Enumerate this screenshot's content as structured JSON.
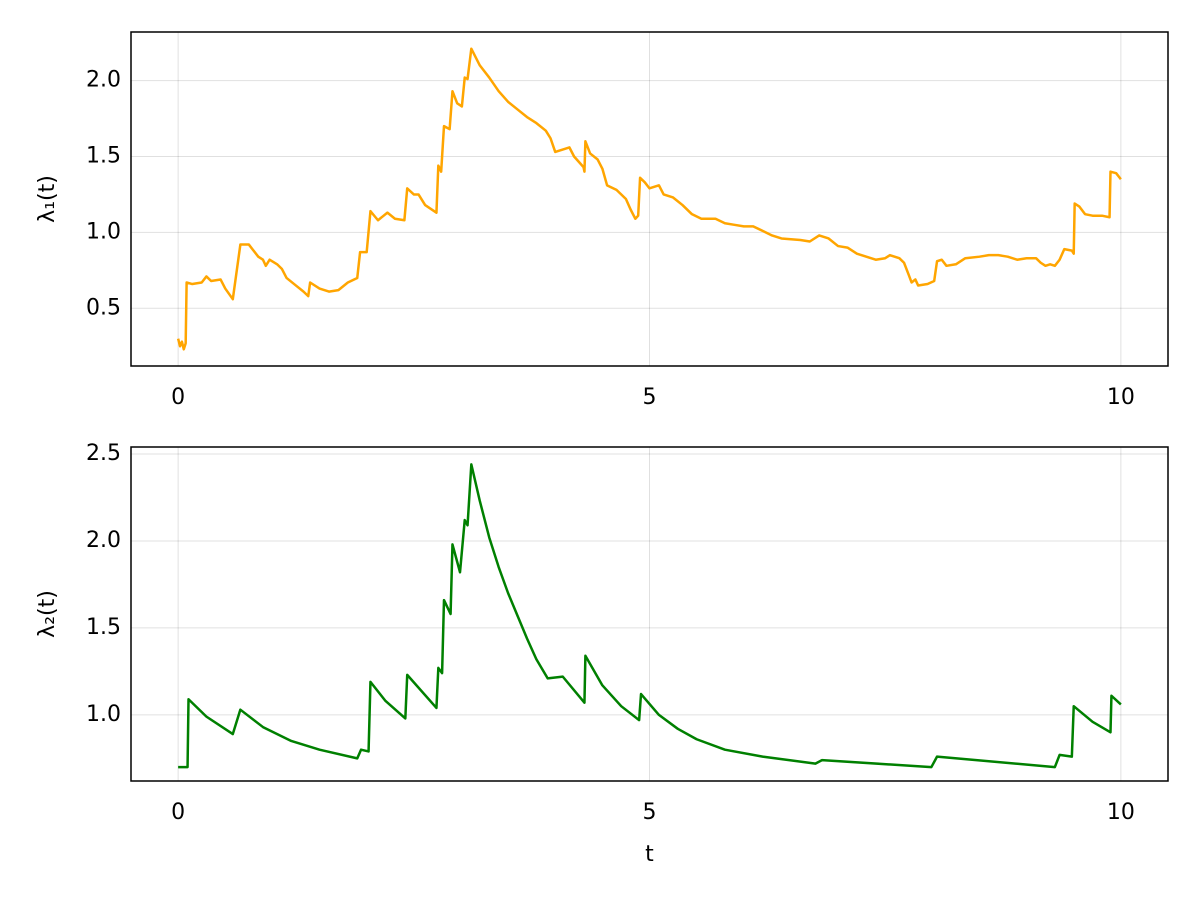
{
  "chart_data": [
    {
      "type": "line",
      "ylabel": "λ₁(t)",
      "xlim": [
        -0.5,
        10.5
      ],
      "xticks": [
        0,
        5,
        10
      ],
      "ylim": [
        0.12,
        2.32
      ],
      "yticks": [
        0.5,
        {
          "value": 1,
          "label": "1.0"
        },
        1.5,
        {
          "value": 2,
          "label": "2.0"
        }
      ],
      "grid": true,
      "x": [
        0,
        0.02,
        0.04,
        0.06,
        0.08,
        0.09,
        0.15,
        0.25,
        0.3,
        0.35,
        0.45,
        0.5,
        0.58,
        0.66,
        0.75,
        0.85,
        0.9,
        0.93,
        0.97,
        1.05,
        1.1,
        1.15,
        1.25,
        1.33,
        1.38,
        1.4,
        1.5,
        1.6,
        1.7,
        1.8,
        1.9,
        1.93,
        2.0,
        2.04,
        2.12,
        2.22,
        2.3,
        2.4,
        2.43,
        2.5,
        2.55,
        2.62,
        2.74,
        2.76,
        2.79,
        2.82,
        2.88,
        2.91,
        2.96,
        3.01,
        3.04,
        3.07,
        3.11,
        3.2,
        3.3,
        3.4,
        3.5,
        3.6,
        3.7,
        3.8,
        3.9,
        3.95,
        4.0,
        4.15,
        4.2,
        4.3,
        4.31,
        4.32,
        4.37,
        4.45,
        4.5,
        4.55,
        4.65,
        4.75,
        4.8,
        4.85,
        4.88,
        4.9,
        4.95,
        5.0,
        5.1,
        5.15,
        5.25,
        5.35,
        5.45,
        5.55,
        5.7,
        5.8,
        5.9,
        6.0,
        6.1,
        6.2,
        6.3,
        6.4,
        6.6,
        6.7,
        6.8,
        6.9,
        7.0,
        7.1,
        7.2,
        7.3,
        7.4,
        7.5,
        7.55,
        7.65,
        7.7,
        7.75,
        7.78,
        7.82,
        7.85,
        7.95,
        8.02,
        8.05,
        8.1,
        8.15,
        8.25,
        8.35,
        8.5,
        8.6,
        8.7,
        8.8,
        8.9,
        9.0,
        9.1,
        9.15,
        9.2,
        9.25,
        9.3,
        9.35,
        9.4,
        9.48,
        9.5,
        9.51,
        9.56,
        9.62,
        9.7,
        9.8,
        9.88,
        9.89,
        9.95,
        10.0
      ],
      "series": [
        {
          "color": "#ffa500",
          "values": [
            0.3,
            0.25,
            0.28,
            0.23,
            0.27,
            0.67,
            0.66,
            0.67,
            0.71,
            0.68,
            0.69,
            0.63,
            0.56,
            0.92,
            0.92,
            0.84,
            0.82,
            0.78,
            0.82,
            0.79,
            0.76,
            0.7,
            0.65,
            0.61,
            0.58,
            0.67,
            0.63,
            0.61,
            0.62,
            0.67,
            0.7,
            0.87,
            0.87,
            1.14,
            1.08,
            1.13,
            1.09,
            1.08,
            1.29,
            1.25,
            1.25,
            1.18,
            1.13,
            1.44,
            1.4,
            1.7,
            1.68,
            1.93,
            1.85,
            1.83,
            2.02,
            2.01,
            2.21,
            2.1,
            2.02,
            1.93,
            1.86,
            1.81,
            1.76,
            1.72,
            1.67,
            1.62,
            1.53,
            1.56,
            1.5,
            1.43,
            1.4,
            1.6,
            1.52,
            1.48,
            1.42,
            1.31,
            1.28,
            1.22,
            1.15,
            1.09,
            1.11,
            1.36,
            1.33,
            1.29,
            1.31,
            1.25,
            1.23,
            1.18,
            1.12,
            1.09,
            1.09,
            1.06,
            1.05,
            1.04,
            1.04,
            1.01,
            0.98,
            0.96,
            0.95,
            0.94,
            0.98,
            0.96,
            0.91,
            0.9,
            0.86,
            0.84,
            0.82,
            0.83,
            0.85,
            0.83,
            0.8,
            0.72,
            0.67,
            0.69,
            0.65,
            0.66,
            0.68,
            0.81,
            0.82,
            0.78,
            0.79,
            0.83,
            0.84,
            0.85,
            0.85,
            0.84,
            0.82,
            0.83,
            0.83,
            0.8,
            0.78,
            0.79,
            0.78,
            0.82,
            0.89,
            0.88,
            0.86,
            1.19,
            1.17,
            1.12,
            1.11,
            1.11,
            1.1,
            1.4,
            1.39,
            1.35
          ]
        }
      ]
    },
    {
      "type": "line",
      "xlabel": "t",
      "ylabel": "λ₂(t)",
      "xlim": [
        -0.5,
        10.5
      ],
      "xticks": [
        0,
        5,
        10
      ],
      "ylim": [
        0.62,
        2.54
      ],
      "yticks": [
        {
          "value": 1,
          "label": "1.0"
        },
        1.5,
        {
          "value": 2,
          "label": "2.0"
        },
        2.5
      ],
      "grid": true,
      "x": [
        0,
        0.1,
        0.11,
        0.3,
        0.58,
        0.66,
        0.9,
        1.2,
        1.5,
        1.9,
        1.94,
        2.02,
        2.04,
        2.2,
        2.41,
        2.43,
        2.74,
        2.76,
        2.8,
        2.82,
        2.89,
        2.91,
        2.99,
        3.04,
        3.07,
        3.11,
        3.2,
        3.3,
        3.4,
        3.5,
        3.6,
        3.7,
        3.8,
        3.92,
        4.08,
        4.31,
        4.32,
        4.5,
        4.7,
        4.89,
        4.91,
        5.1,
        5.3,
        5.5,
        5.8,
        6.2,
        6.76,
        6.83,
        7.99,
        8.05,
        9.3,
        9.35,
        9.48,
        9.5,
        9.7,
        9.89,
        9.9,
        10.0
      ],
      "series": [
        {
          "color": "#008000",
          "values": [
            0.7,
            0.7,
            1.09,
            0.99,
            0.89,
            1.03,
            0.93,
            0.85,
            0.8,
            0.75,
            0.8,
            0.79,
            1.19,
            1.08,
            0.98,
            1.23,
            1.04,
            1.27,
            1.24,
            1.66,
            1.58,
            1.98,
            1.82,
            2.12,
            2.09,
            2.44,
            2.23,
            2.02,
            1.85,
            1.7,
            1.57,
            1.44,
            1.32,
            1.21,
            1.22,
            1.07,
            1.34,
            1.17,
            1.05,
            0.97,
            1.12,
            1.0,
            0.92,
            0.86,
            0.8,
            0.76,
            0.72,
            0.74,
            0.7,
            0.76,
            0.7,
            0.77,
            0.76,
            1.05,
            0.96,
            0.9,
            1.11,
            1.06
          ]
        }
      ]
    }
  ]
}
